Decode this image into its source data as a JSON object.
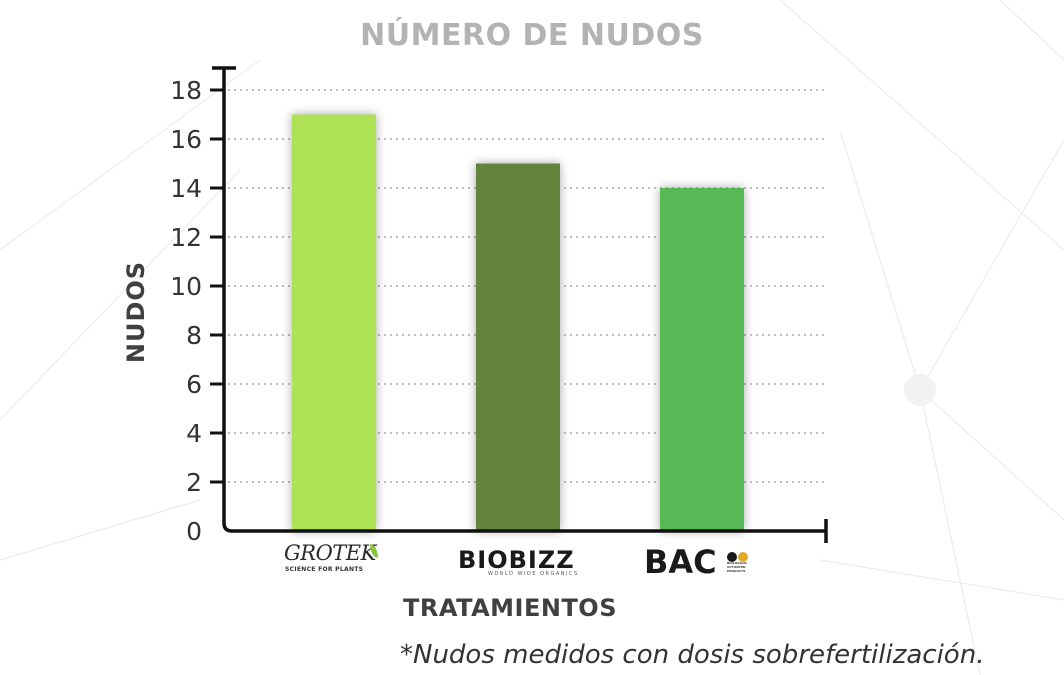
{
  "chart_data": {
    "type": "bar",
    "title": "NÚMERO DE NUDOS",
    "xlabel": "TRATAMIENTOS",
    "ylabel": "NUDOS",
    "categories": [
      "GROTEK",
      "BIOBIZZ",
      "BAC"
    ],
    "values": [
      17,
      15,
      14
    ],
    "bar_colors": [
      "#aee254",
      "#62843c",
      "#56b956"
    ],
    "ylim": [
      0,
      18
    ],
    "yticks": [
      0,
      2,
      4,
      6,
      8,
      10,
      12,
      14,
      16,
      18
    ],
    "grid": true,
    "legend": "none",
    "note": "*Nudos medidos con dosis sobrefertilización."
  },
  "logos": {
    "grotek": {
      "word": "GROTEK",
      "tagline": "SCIENCE FOR PLANTS"
    },
    "biobizz": {
      "word": "BIOBIZZ",
      "tagline": "WORLD WIDE ORGANICS"
    },
    "bac": {
      "word": "BAC",
      "tagline": "BIOLOGICAL ACTIVATED PRODUCTS",
      "icon_colors": [
        "#1a1a1a",
        "#e0a92a"
      ]
    }
  }
}
